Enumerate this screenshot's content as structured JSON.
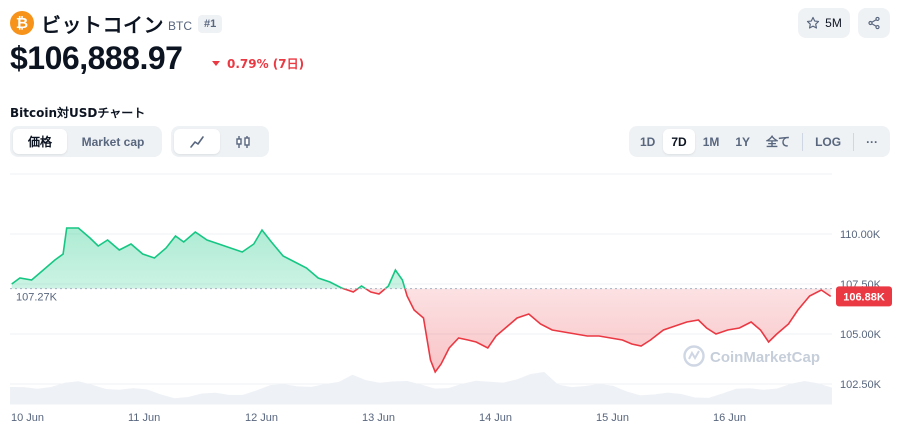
{
  "coin": {
    "logo_letter": "₿",
    "name": "ビットコイン",
    "symbol": "BTC",
    "rank": "#1"
  },
  "actions": {
    "watchlist_count": "5M",
    "watchlist_icon": "star-icon",
    "share_icon": "share-icon"
  },
  "price": {
    "value": "$106,888.97",
    "change_text": "0.79% (7日)",
    "change_direction": "down",
    "change_color": "#ea3943"
  },
  "chart_title": "Bitcoin対USDチャート",
  "chart_type_tabs": [
    {
      "label": "価格",
      "active": true
    },
    {
      "label": "Market cap",
      "active": false
    }
  ],
  "chart_view_tabs": [
    {
      "icon": "line-chart-icon",
      "active": true
    },
    {
      "icon": "candlestick-icon",
      "active": false
    }
  ],
  "range_tabs": [
    {
      "label": "1D",
      "active": false
    },
    {
      "label": "7D",
      "active": true
    },
    {
      "label": "1M",
      "active": false
    },
    {
      "label": "1Y",
      "active": false
    },
    {
      "label": "全て",
      "active": false
    }
  ],
  "log_label": "LOG",
  "more_label": "···",
  "watermark": "CoinMarketCap",
  "colors": {
    "up": "#16c784",
    "down": "#ea3943",
    "brand": "#f7931a"
  },
  "chart_data": {
    "type": "area",
    "baseline": 107270,
    "baseline_label": "107.27K",
    "current_label": "106.88K",
    "current_value": 106880,
    "y_ticks": [
      {
        "value": 110000,
        "label": "110.00K"
      },
      {
        "value": 107500,
        "label": "107.50K"
      },
      {
        "value": 105000,
        "label": "105.00K"
      },
      {
        "value": 102500,
        "label": "102.50K"
      }
    ],
    "ylim": [
      101500,
      112500
    ],
    "xlim": [
      0,
      7
    ],
    "x_ticks": [
      {
        "value": 0,
        "label": "10 Jun"
      },
      {
        "value": 1,
        "label": "11 Jun"
      },
      {
        "value": 2,
        "label": "12 Jun"
      },
      {
        "value": 3,
        "label": "13 Jun"
      },
      {
        "value": 4,
        "label": "14 Jun"
      },
      {
        "value": 5,
        "label": "15 Jun"
      },
      {
        "value": 6,
        "label": "16 Jun"
      }
    ],
    "points": [
      [
        -0.02,
        107500
      ],
      [
        0.05,
        107800
      ],
      [
        0.15,
        107700
      ],
      [
        0.25,
        108200
      ],
      [
        0.35,
        108700
      ],
      [
        0.42,
        109000
      ],
      [
        0.45,
        110300
      ],
      [
        0.55,
        110300
      ],
      [
        0.65,
        109800
      ],
      [
        0.72,
        109400
      ],
      [
        0.8,
        109700
      ],
      [
        0.9,
        109200
      ],
      [
        1.0,
        109500
      ],
      [
        1.1,
        109000
      ],
      [
        1.2,
        108800
      ],
      [
        1.3,
        109300
      ],
      [
        1.38,
        109900
      ],
      [
        1.45,
        109600
      ],
      [
        1.55,
        110100
      ],
      [
        1.65,
        109700
      ],
      [
        1.75,
        109500
      ],
      [
        1.85,
        109300
      ],
      [
        1.95,
        109100
      ],
      [
        2.05,
        109500
      ],
      [
        2.12,
        110200
      ],
      [
        2.2,
        109600
      ],
      [
        2.3,
        108900
      ],
      [
        2.4,
        108600
      ],
      [
        2.5,
        108300
      ],
      [
        2.6,
        107800
      ],
      [
        2.7,
        107600
      ],
      [
        2.8,
        107300
      ],
      [
        2.9,
        107100
      ],
      [
        2.97,
        107400
      ],
      [
        3.05,
        107100
      ],
      [
        3.12,
        107000
      ],
      [
        3.2,
        107400
      ],
      [
        3.26,
        108200
      ],
      [
        3.32,
        107700
      ],
      [
        3.36,
        106900
      ],
      [
        3.42,
        106200
      ],
      [
        3.5,
        105800
      ],
      [
        3.56,
        103700
      ],
      [
        3.6,
        103100
      ],
      [
        3.65,
        103500
      ],
      [
        3.72,
        104300
      ],
      [
        3.8,
        104800
      ],
      [
        3.88,
        104700
      ],
      [
        3.95,
        104600
      ],
      [
        4.05,
        104300
      ],
      [
        4.12,
        104900
      ],
      [
        4.2,
        105300
      ],
      [
        4.3,
        105800
      ],
      [
        4.4,
        106000
      ],
      [
        4.5,
        105500
      ],
      [
        4.6,
        105200
      ],
      [
        4.7,
        105100
      ],
      [
        4.8,
        105000
      ],
      [
        4.9,
        104900
      ],
      [
        5.0,
        104900
      ],
      [
        5.1,
        104800
      ],
      [
        5.2,
        104700
      ],
      [
        5.28,
        104500
      ],
      [
        5.36,
        104400
      ],
      [
        5.44,
        104700
      ],
      [
        5.55,
        105200
      ],
      [
        5.65,
        105400
      ],
      [
        5.75,
        105600
      ],
      [
        5.85,
        105700
      ],
      [
        5.92,
        105300
      ],
      [
        6.0,
        105000
      ],
      [
        6.1,
        105200
      ],
      [
        6.2,
        105300
      ],
      [
        6.3,
        105600
      ],
      [
        6.38,
        105200
      ],
      [
        6.45,
        104600
      ],
      [
        6.52,
        105000
      ],
      [
        6.62,
        105500
      ],
      [
        6.7,
        106200
      ],
      [
        6.8,
        106900
      ],
      [
        6.9,
        107200
      ],
      [
        6.98,
        106880
      ]
    ]
  }
}
